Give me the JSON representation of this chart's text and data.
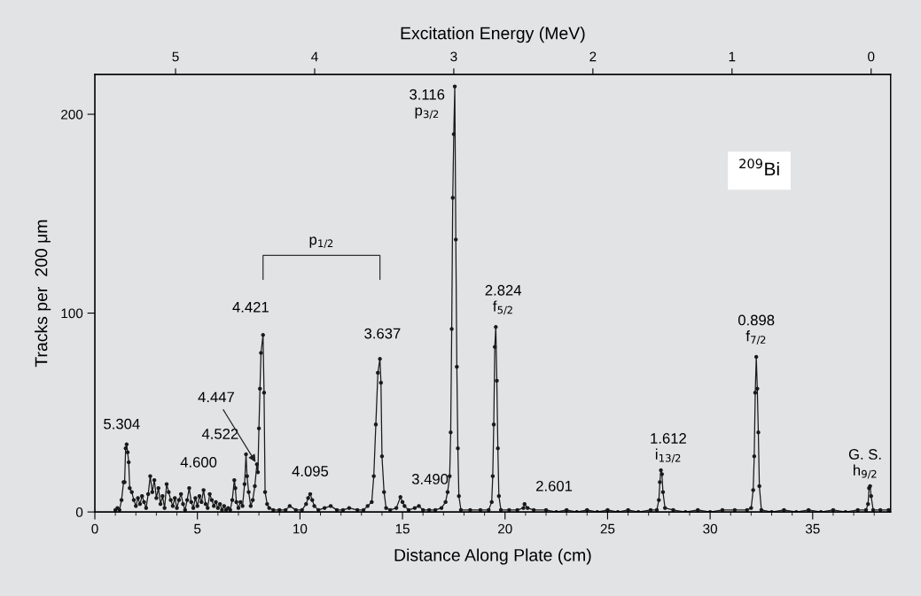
{
  "chart_data": {
    "type": "line",
    "xlabel": "Distance Along Plate (cm)",
    "ylabel": "Tracks per  200 μm",
    "x2label": "Excitation Energy (MeV)",
    "xlim": [
      0,
      38.8
    ],
    "xticks": [
      0,
      5,
      10,
      15,
      20,
      25,
      30,
      35
    ],
    "ylim": [
      0,
      220
    ],
    "yticks": [
      0,
      100,
      200
    ],
    "x2lim": [
      5.58,
      -0.14
    ],
    "x2ticks": [
      5,
      4,
      3,
      2,
      1,
      0
    ],
    "marker": "circle",
    "line_style": "solid",
    "grid": false,
    "legend": false,
    "series": [
      {
        "color": "#1a1a1a",
        "x": [
          1.0,
          1.1,
          1.2,
          1.3,
          1.4,
          1.45,
          1.5,
          1.55,
          1.6,
          1.65,
          1.7,
          1.8,
          1.9,
          2.0,
          2.1,
          2.2,
          2.3,
          2.4,
          2.5,
          2.6,
          2.7,
          2.8,
          2.9,
          3.0,
          3.1,
          3.2,
          3.3,
          3.4,
          3.5,
          3.6,
          3.7,
          3.8,
          3.9,
          4.0,
          4.1,
          4.2,
          4.3,
          4.4,
          4.5,
          4.6,
          4.7,
          4.8,
          4.9,
          5.0,
          5.1,
          5.2,
          5.3,
          5.4,
          5.5,
          5.6,
          5.7,
          5.8,
          5.9,
          6.0,
          6.1,
          6.2,
          6.3,
          6.4,
          6.5,
          6.6,
          6.7,
          6.8,
          6.85,
          6.9,
          7.0,
          7.1,
          7.2,
          7.3,
          7.37,
          7.42,
          7.5,
          7.6,
          7.7,
          7.8,
          7.9,
          7.95,
          8.0,
          8.05,
          8.1,
          8.2,
          8.25,
          8.3,
          8.4,
          8.5,
          8.7,
          9.0,
          9.3,
          9.5,
          9.8,
          10.1,
          10.3,
          10.4,
          10.5,
          10.6,
          10.7,
          10.9,
          11.2,
          11.5,
          11.8,
          12.1,
          12.4,
          12.8,
          13.1,
          13.3,
          13.5,
          13.6,
          13.7,
          13.8,
          13.9,
          13.95,
          14.0,
          14.1,
          14.2,
          14.4,
          14.7,
          14.9,
          15.0,
          15.1,
          15.3,
          15.6,
          15.8,
          16.0,
          16.3,
          16.6,
          16.9,
          17.1,
          17.2,
          17.3,
          17.35,
          17.4,
          17.45,
          17.5,
          17.55,
          17.6,
          17.65,
          17.7,
          17.75,
          17.85,
          18.3,
          18.8,
          19.2,
          19.35,
          19.4,
          19.45,
          19.5,
          19.55,
          19.6,
          19.65,
          19.7,
          19.8,
          20.2,
          20.6,
          20.9,
          20.95,
          21.1,
          21.4,
          22.0,
          22.5,
          23.0,
          23.5,
          24.0,
          24.5,
          25.0,
          25.5,
          26.0,
          26.5,
          27.1,
          27.4,
          27.5,
          27.55,
          27.6,
          27.65,
          27.7,
          27.8,
          28.2,
          28.8,
          29.4,
          30.0,
          30.6,
          31.2,
          31.8,
          32.0,
          32.1,
          32.15,
          32.2,
          32.25,
          32.3,
          32.35,
          32.4,
          32.5,
          33.0,
          33.6,
          34.2,
          34.8,
          35.4,
          36.0,
          36.6,
          37.2,
          37.6,
          37.7,
          37.75,
          37.8,
          37.85,
          37.95,
          38.3,
          38.7
        ],
        "values": [
          1,
          2,
          1,
          6,
          15,
          15,
          32,
          34,
          30,
          25,
          12,
          10,
          6,
          3,
          7,
          4,
          8,
          5,
          2,
          9,
          18,
          10,
          16,
          7,
          12,
          4,
          8,
          2,
          14,
          10,
          6,
          3,
          7,
          2,
          6,
          9,
          4,
          1,
          6,
          12,
          5,
          2,
          7,
          3,
          8,
          5,
          11,
          4,
          2,
          9,
          6,
          3,
          5,
          2,
          4,
          1,
          3,
          1,
          2,
          1,
          6,
          16,
          12,
          5,
          2,
          5,
          3,
          14,
          29,
          18,
          10,
          3,
          6,
          13,
          24,
          20,
          42,
          62,
          80,
          89,
          60,
          10,
          4,
          2,
          1,
          1,
          1,
          3,
          1,
          1,
          4,
          7,
          9,
          6,
          3,
          1,
          2,
          3,
          1,
          1,
          2,
          1,
          1,
          3,
          5,
          18,
          44,
          70,
          77,
          65,
          28,
          10,
          2,
          1,
          2,
          7.5,
          5,
          3,
          1,
          2,
          3,
          1,
          1,
          1,
          2,
          5,
          10,
          18,
          40,
          92,
          158,
          190,
          214,
          137,
          73,
          32,
          8,
          1,
          1,
          1,
          1,
          5,
          18,
          44,
          83,
          93,
          66,
          32,
          8,
          1,
          1,
          1,
          2,
          4,
          2,
          1,
          1,
          0,
          1,
          0,
          1,
          0,
          1,
          0,
          1,
          0,
          1,
          1,
          6,
          15,
          21,
          19,
          10,
          2,
          1,
          0,
          1,
          0,
          1,
          1,
          1,
          2,
          11,
          28,
          60,
          78,
          62,
          40,
          13,
          1,
          0,
          1,
          0,
          1,
          0,
          1,
          0,
          1,
          1,
          4,
          12,
          13,
          8,
          1,
          1,
          1
        ]
      }
    ],
    "annotations": [
      {
        "text": "5.304",
        "x": 1.55,
        "y": 34
      },
      {
        "text": "4.600",
        "x": 6.8,
        "y": 16
      },
      {
        "text": "4.522",
        "x": 7.37,
        "y": 29
      },
      {
        "text": "4.447",
        "x": 7.9,
        "y": 24
      },
      {
        "text": "4.421",
        "x": 8.2,
        "y": 89
      },
      {
        "text": "4.095",
        "x": 10.5,
        "y": 9
      },
      {
        "text": "3.637",
        "x": 13.9,
        "y": 77
      },
      {
        "text": "3.490",
        "x": 14.9,
        "y": 7.5
      },
      {
        "text": "3.116\np$_{3/2}$",
        "x": 17.55,
        "y": 214
      },
      {
        "text": "2.824\nf$_{5/2}$",
        "x": 19.55,
        "y": 93
      },
      {
        "text": "2.601",
        "x": 20.95,
        "y": 4
      },
      {
        "text": "1.612\ni$_{13/2}$",
        "x": 27.6,
        "y": 21
      },
      {
        "text": "0.898\nf$_{7/2}$",
        "x": 32.25,
        "y": 78
      },
      {
        "text": "G. S.\nh$_{9/2}$",
        "x": 37.8,
        "y": 13
      },
      "p$_{1/2}$",
      "$^{209}$Bi"
    ]
  }
}
